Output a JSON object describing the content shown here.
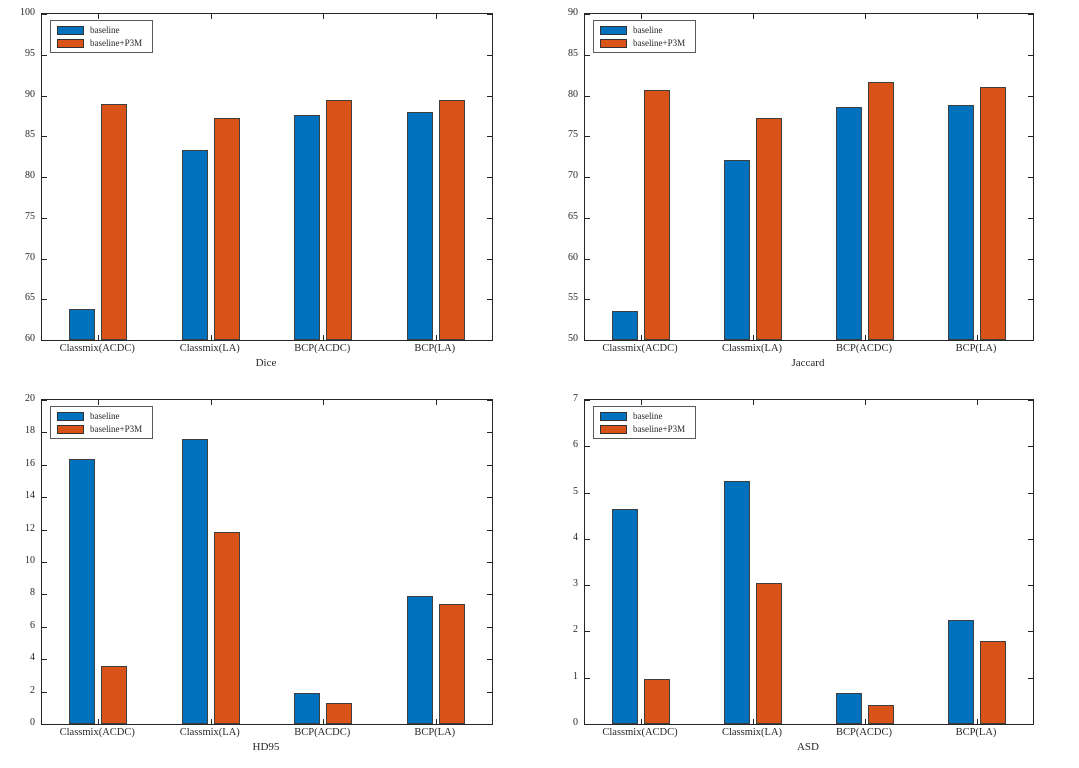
{
  "figure": {
    "background": "#ffffff",
    "axis_color": "#262626",
    "series_colors": {
      "baseline": "#0072BD",
      "baseline_p3m": "#D95319"
    },
    "legend": {
      "position": "top-left",
      "items": [
        {
          "label": "baseline",
          "color": "#0072BD"
        },
        {
          "label": "baseline+P3M",
          "color": "#D95319"
        }
      ]
    }
  },
  "chart_data": [
    {
      "type": "bar",
      "title": "",
      "xlabel": "Dice",
      "ylabel": "",
      "grid": false,
      "legend_position": "top-left",
      "categories": [
        "Classmix(ACDC)",
        "Classmix(LA)",
        "BCP(ACDC)",
        "BCP(LA)"
      ],
      "ylim": [
        60,
        100
      ],
      "ytick_step": 5,
      "series": [
        {
          "name": "baseline",
          "color": "#0072BD",
          "values": [
            63.8,
            83.3,
            87.6,
            88.0
          ]
        },
        {
          "name": "baseline+P3M",
          "color": "#D95319",
          "values": [
            89.0,
            87.2,
            89.5,
            89.4
          ]
        }
      ]
    },
    {
      "type": "bar",
      "title": "",
      "xlabel": "Jaccard",
      "ylabel": "",
      "grid": false,
      "legend_position": "top-left",
      "categories": [
        "Classmix(ACDC)",
        "Classmix(LA)",
        "BCP(ACDC)",
        "BCP(LA)"
      ],
      "ylim": [
        50,
        90
      ],
      "ytick_step": 5,
      "series": [
        {
          "name": "baseline",
          "color": "#0072BD",
          "values": [
            53.5,
            72.1,
            78.6,
            78.8
          ]
        },
        {
          "name": "baseline+P3M",
          "color": "#D95319",
          "values": [
            80.7,
            77.3,
            81.7,
            81.0
          ]
        }
      ]
    },
    {
      "type": "bar",
      "title": "",
      "xlabel": "HD95",
      "ylabel": "",
      "grid": false,
      "legend_position": "top-left",
      "categories": [
        "Classmix(ACDC)",
        "Classmix(LA)",
        "BCP(ACDC)",
        "BCP(LA)"
      ],
      "ylim": [
        0,
        20
      ],
      "ytick_step": 2,
      "series": [
        {
          "name": "baseline",
          "color": "#0072BD",
          "values": [
            16.35,
            17.6,
            1.9,
            7.9
          ]
        },
        {
          "name": "baseline+P3M",
          "color": "#D95319",
          "values": [
            3.55,
            11.85,
            1.3,
            7.4
          ]
        }
      ]
    },
    {
      "type": "bar",
      "title": "",
      "xlabel": "ASD",
      "ylabel": "",
      "grid": false,
      "legend_position": "top-left",
      "categories": [
        "Classmix(ACDC)",
        "Classmix(LA)",
        "BCP(ACDC)",
        "BCP(LA)"
      ],
      "ylim": [
        0,
        7
      ],
      "ytick_step": 1,
      "series": [
        {
          "name": "baseline",
          "color": "#0072BD",
          "values": [
            4.65,
            5.25,
            0.67,
            2.25
          ]
        },
        {
          "name": "baseline+P3M",
          "color": "#D95319",
          "values": [
            0.97,
            3.05,
            0.41,
            1.79
          ]
        }
      ]
    }
  ]
}
